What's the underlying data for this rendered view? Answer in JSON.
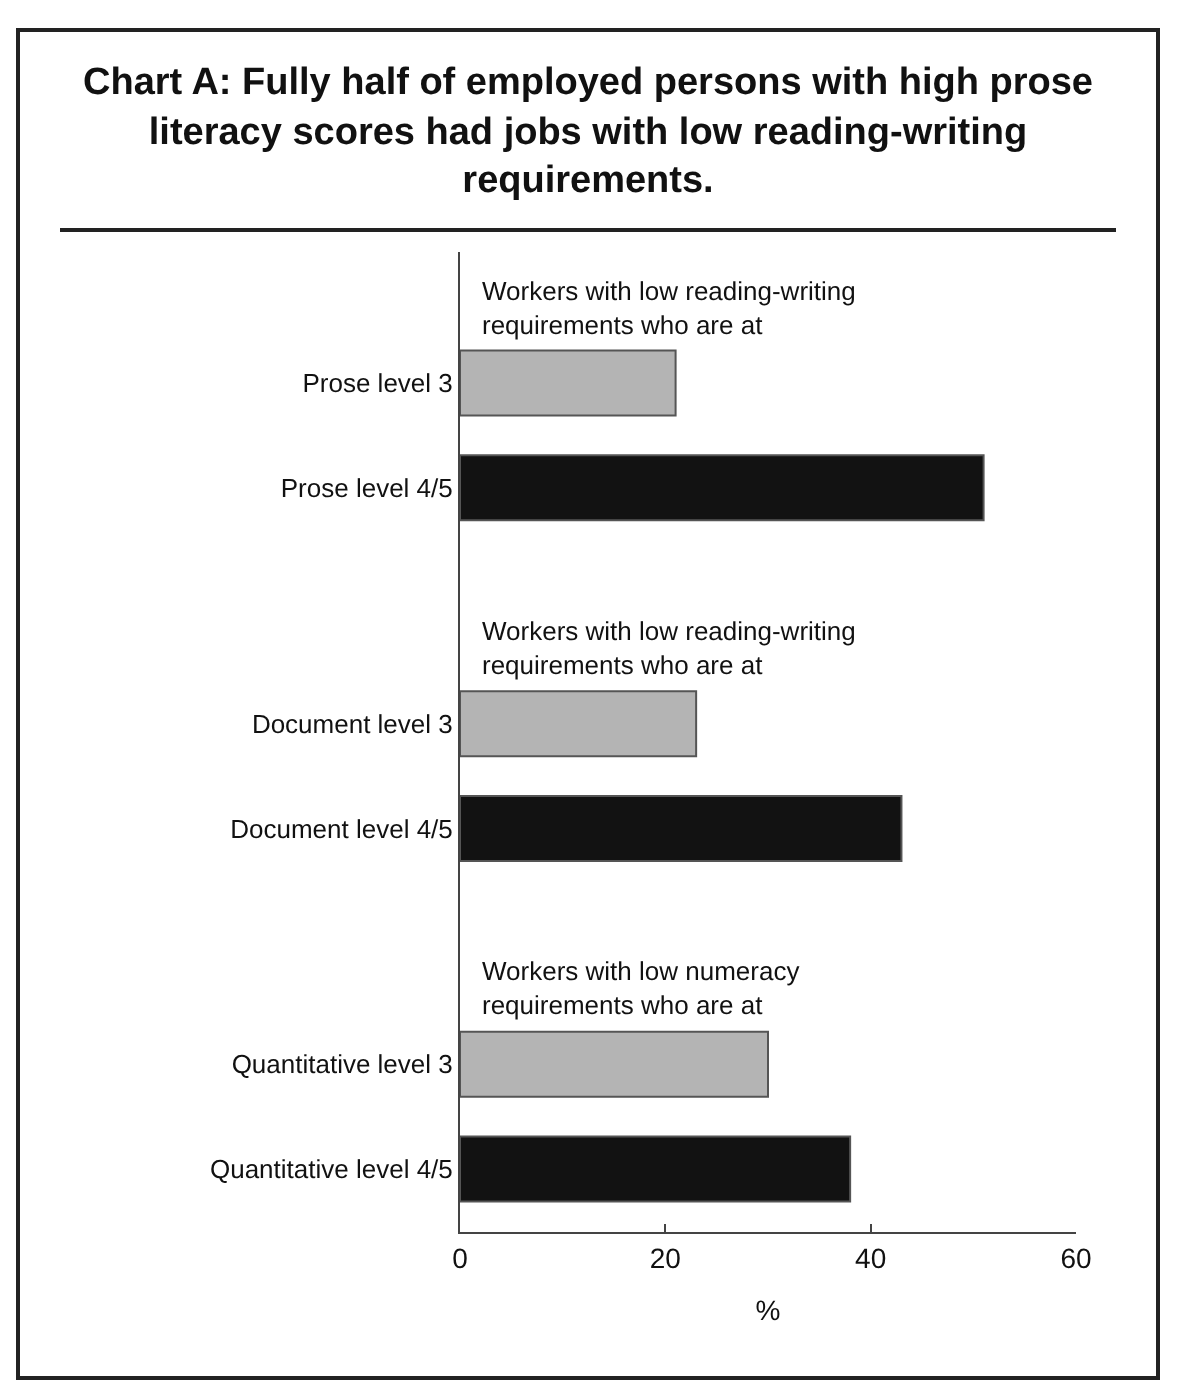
{
  "chart_data": {
    "type": "bar",
    "orientation": "horizontal",
    "title": "Chart  A: Fully half of employed persons with high prose literacy scores had jobs with low reading-writing requirements.",
    "categories": [
      "Prose level 3",
      "Prose level 4/5",
      "Document level 3",
      "Document level 4/5",
      "Quantitative level 3",
      "Quantitative level 4/5"
    ],
    "values": [
      21,
      51,
      23,
      43,
      30,
      38
    ],
    "colors": [
      "#b4b4b4",
      "#121212",
      "#b4b4b4",
      "#121212",
      "#b4b4b4",
      "#121212"
    ],
    "annotations": [
      "Workers with low reading-writing requirements who are at",
      "Workers with low reading-writing requirements who are at",
      "Workers with low numeracy requirements who are at"
    ],
    "xlabel": "%",
    "xlim": [
      0,
      60
    ],
    "xticks": [
      0,
      20,
      40,
      60
    ],
    "grid": false
  }
}
